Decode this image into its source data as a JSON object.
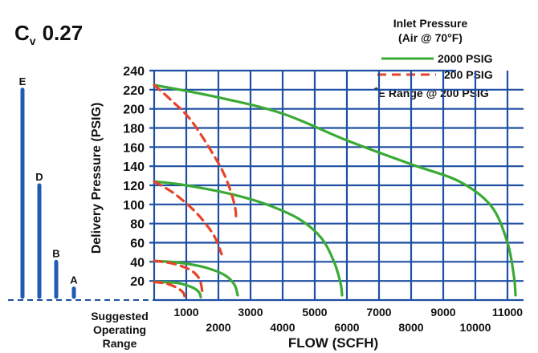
{
  "title": {
    "prefix": "C",
    "subscript": "v",
    "value": "0.27"
  },
  "legend": {
    "title_line1": "Inlet Pressure",
    "title_line2": "(Air @ 70°F)",
    "entries": [
      {
        "label": "2000 PSIG",
        "color": "#3aaa35",
        "style": "solid"
      },
      {
        "label": "200 PSIG",
        "color": "#e8432a",
        "style": "dashed"
      }
    ],
    "note_star": "*",
    "note": "E Range @ 200 PSIG"
  },
  "range_panel": {
    "caption_lines": [
      "Suggested",
      "Operating",
      "Range"
    ],
    "bars": [
      {
        "label": "E",
        "min": 0,
        "max": 220
      },
      {
        "label": "D",
        "min": 0,
        "max": 120
      },
      {
        "label": "B",
        "min": 0,
        "max": 40
      },
      {
        "label": "A",
        "min": 0,
        "max": 12
      }
    ],
    "color": "#1f5bb3"
  },
  "chart_data": {
    "type": "line",
    "xlabel": "FLOW (SCFH)",
    "ylabel": "Delivery Pressure (PSIG)",
    "xlim": [
      0,
      11500
    ],
    "ylim": [
      0,
      240
    ],
    "x_ticks_upper": [
      1000,
      3000,
      5000,
      7000,
      9000,
      11000
    ],
    "x_ticks_lower": [
      2000,
      4000,
      6000,
      8000,
      10000
    ],
    "y_ticks": [
      20,
      40,
      60,
      80,
      100,
      120,
      140,
      160,
      180,
      200,
      220,
      240
    ],
    "grid": true,
    "series": [
      {
        "name": "2000 PSIG",
        "color": "#3aaa35",
        "style": "solid",
        "points": [
          [
            0,
            225
          ],
          [
            2000,
            212
          ],
          [
            4000,
            195
          ],
          [
            6000,
            167
          ],
          [
            8000,
            142
          ],
          [
            9500,
            124
          ],
          [
            10500,
            98
          ],
          [
            11000,
            60
          ],
          [
            11200,
            25
          ],
          [
            11250,
            5
          ]
        ]
      },
      {
        "name": "2000 PSIG",
        "color": "#3aaa35",
        "style": "solid",
        "points": [
          [
            0,
            124
          ],
          [
            1000,
            120
          ],
          [
            2500,
            110
          ],
          [
            3500,
            100
          ],
          [
            4500,
            85
          ],
          [
            5200,
            65
          ],
          [
            5600,
            40
          ],
          [
            5800,
            18
          ],
          [
            5850,
            5
          ]
        ]
      },
      {
        "name": "2000 PSIG",
        "color": "#3aaa35",
        "style": "solid",
        "points": [
          [
            0,
            41
          ],
          [
            800,
            39
          ],
          [
            1600,
            34
          ],
          [
            2200,
            26
          ],
          [
            2500,
            16
          ],
          [
            2600,
            5
          ]
        ]
      },
      {
        "name": "2000 PSIG",
        "color": "#3aaa35",
        "style": "solid",
        "points": [
          [
            0,
            19
          ],
          [
            700,
            18
          ],
          [
            1200,
            13
          ],
          [
            1400,
            8
          ],
          [
            1450,
            3
          ]
        ]
      },
      {
        "name": "200 PSIG",
        "color": "#e8432a",
        "style": "dashed",
        "points": [
          [
            0,
            225
          ],
          [
            500,
            210
          ],
          [
            1100,
            190
          ],
          [
            1700,
            160
          ],
          [
            2200,
            130
          ],
          [
            2500,
            100
          ],
          [
            2550,
            85
          ]
        ]
      },
      {
        "name": "200 PSIG",
        "color": "#e8432a",
        "style": "dashed",
        "points": [
          [
            0,
            124
          ],
          [
            600,
            112
          ],
          [
            1200,
            95
          ],
          [
            1600,
            80
          ],
          [
            1900,
            65
          ],
          [
            2100,
            48
          ]
        ]
      },
      {
        "name": "200 PSIG",
        "color": "#e8432a",
        "style": "dashed",
        "points": [
          [
            0,
            41
          ],
          [
            600,
            38
          ],
          [
            1100,
            32
          ],
          [
            1350,
            25
          ],
          [
            1450,
            18
          ],
          [
            1500,
            8
          ]
        ]
      },
      {
        "name": "200 PSIG",
        "color": "#e8432a",
        "style": "dashed",
        "points": [
          [
            0,
            19
          ],
          [
            400,
            17
          ],
          [
            700,
            13
          ],
          [
            900,
            8
          ],
          [
            950,
            3
          ]
        ]
      }
    ]
  }
}
